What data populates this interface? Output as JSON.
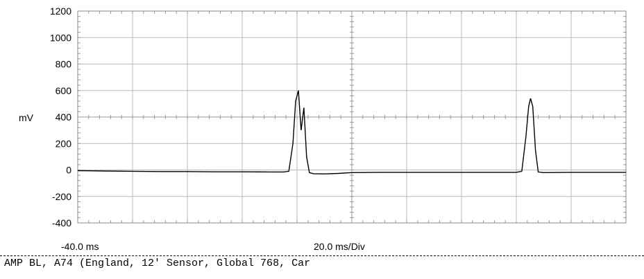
{
  "chart_data": {
    "type": "line",
    "title": "",
    "ylabel": "mV",
    "ylim": [
      -400,
      1200
    ],
    "yticks": [
      "1200",
      "1000",
      "800",
      "600",
      "400",
      "200",
      "0",
      "-200",
      "-400"
    ],
    "x_start_label": "-40.0 ms",
    "x_scale_label": "20.0 ms/Div",
    "x_divisions": 10,
    "xlim_ms": [
      -40,
      160
    ],
    "grid": true,
    "series": [
      {
        "color": "#000000",
        "points_ms_mV": [
          [
            -40,
            -5
          ],
          [
            -30,
            -8
          ],
          [
            -20,
            -10
          ],
          [
            -10,
            -12
          ],
          [
            0,
            -12
          ],
          [
            10,
            -14
          ],
          [
            20,
            -14
          ],
          [
            30,
            -15
          ],
          [
            35,
            -15
          ],
          [
            37,
            -10
          ],
          [
            38.5,
            200
          ],
          [
            39.5,
            520
          ],
          [
            40.5,
            600
          ],
          [
            41.5,
            300
          ],
          [
            42.5,
            470
          ],
          [
            43.5,
            100
          ],
          [
            44.5,
            -20
          ],
          [
            46,
            -28
          ],
          [
            50,
            -30
          ],
          [
            55,
            -26
          ],
          [
            60,
            -20
          ],
          [
            70,
            -18
          ],
          [
            80,
            -18
          ],
          [
            90,
            -18
          ],
          [
            100,
            -18
          ],
          [
            110,
            -18
          ],
          [
            120,
            -18
          ],
          [
            122,
            -10
          ],
          [
            123.5,
            250
          ],
          [
            124.5,
            480
          ],
          [
            125.2,
            540
          ],
          [
            126,
            480
          ],
          [
            127,
            150
          ],
          [
            128,
            -15
          ],
          [
            130,
            -20
          ],
          [
            140,
            -18
          ],
          [
            150,
            -18
          ],
          [
            160,
            -18
          ]
        ]
      }
    ]
  },
  "caption": "AMP BL, A74 (England, 12' Sensor, Global 768, Car"
}
